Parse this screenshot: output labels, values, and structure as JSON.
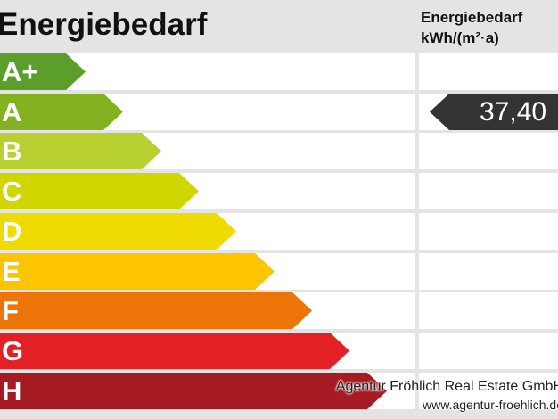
{
  "title": "Energiebedarf",
  "column_header": {
    "line1": "Energiebedarf",
    "line2": "kWh/(m²·a)"
  },
  "classes": [
    {
      "label": "A+",
      "color": "#5b9e2a"
    },
    {
      "label": "A",
      "color": "#82b21f"
    },
    {
      "label": "B",
      "color": "#b9d031"
    },
    {
      "label": "C",
      "color": "#cfd602"
    },
    {
      "label": "D",
      "color": "#f0db00"
    },
    {
      "label": "E",
      "color": "#fdc400"
    },
    {
      "label": "F",
      "color": "#ed7407"
    },
    {
      "label": "G",
      "color": "#e32124"
    },
    {
      "label": "H",
      "color": "#a61a22"
    }
  ],
  "current_value": {
    "text": "37,40",
    "class": "A"
  },
  "footer": {
    "company": "Agentur Fröhlich Real Estate GmbH",
    "website": "www.agentur-froehlich.de"
  }
}
